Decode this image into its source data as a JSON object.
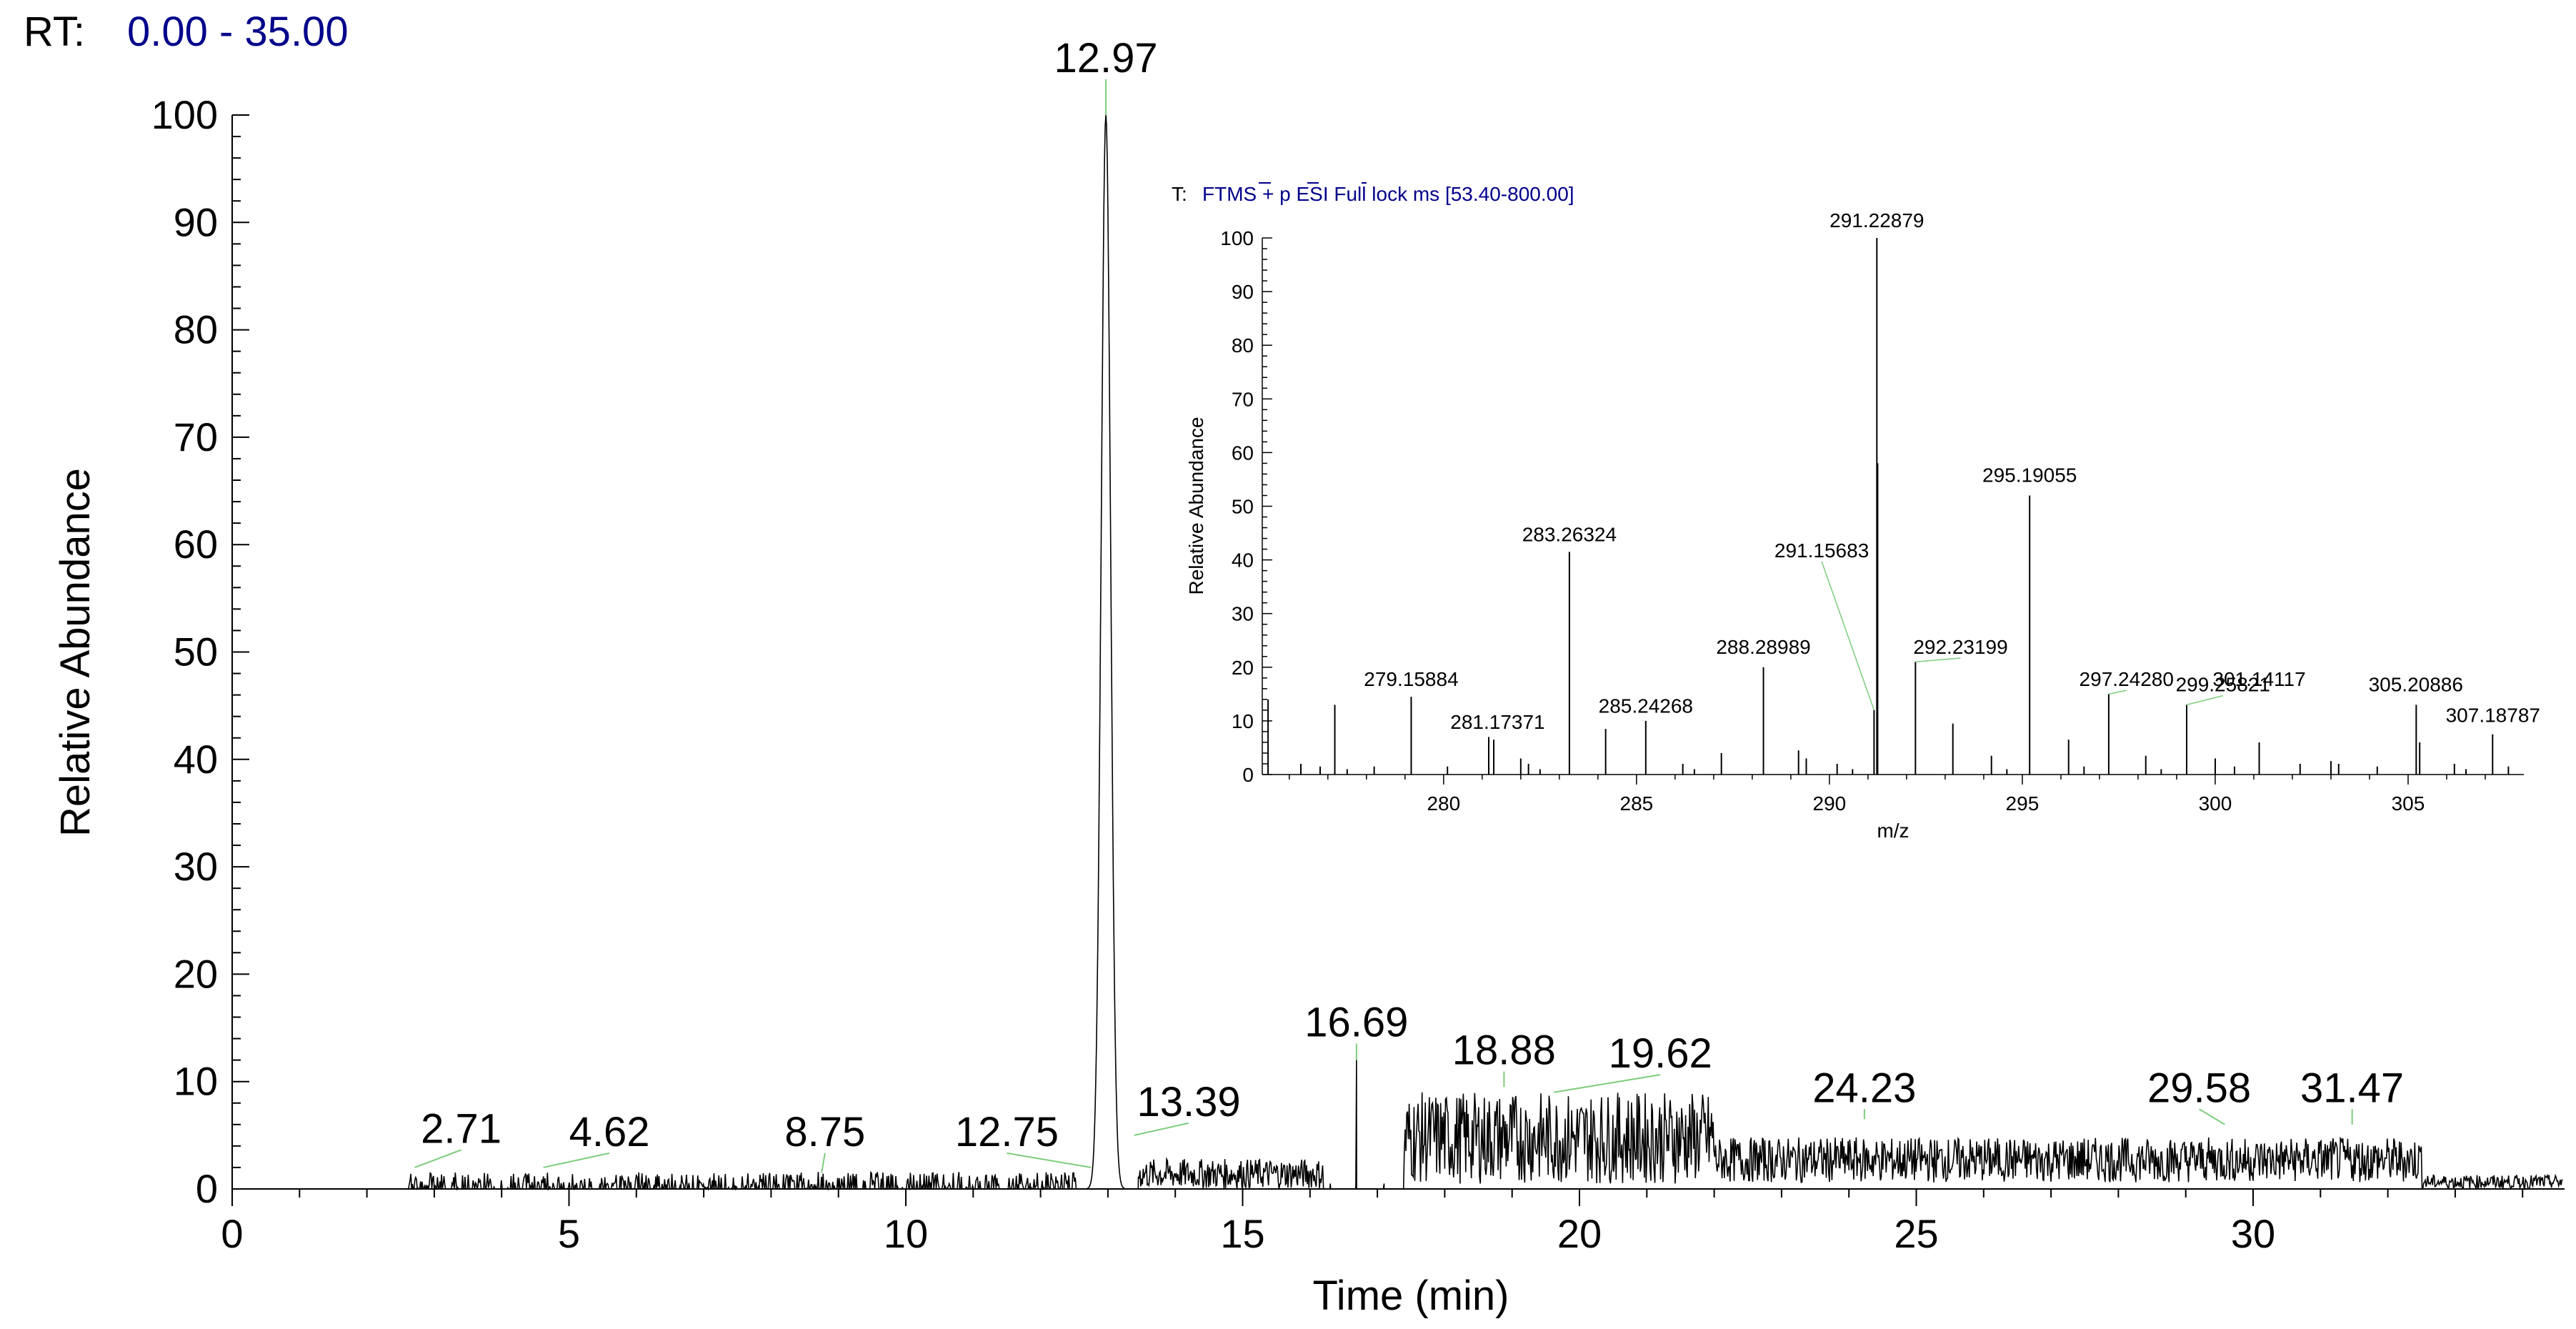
{
  "header": {
    "prefix": "RT:",
    "range": "0.00 - 35.00"
  },
  "colors": {
    "trace": "#000000",
    "label_line": "#7ccd7c",
    "header_range": "#00008b"
  },
  "chart_data": [
    {
      "type": "line",
      "name": "chromatogram",
      "xlabel": "Time (min)",
      "ylabel": "Relative Abundance",
      "xlim": [
        0,
        34.6
      ],
      "ylim": [
        0,
        100
      ],
      "xticks": [
        0,
        5,
        10,
        15,
        20,
        25,
        30
      ],
      "yticks": [
        0,
        10,
        20,
        30,
        40,
        50,
        60,
        70,
        80,
        90,
        100
      ],
      "peaks": [
        {
          "x": 2.71,
          "y": 2,
          "label": "2.71"
        },
        {
          "x": 4.62,
          "y": 2,
          "label": "4.62"
        },
        {
          "x": 8.75,
          "y": 1.5,
          "label": "8.75"
        },
        {
          "x": 12.75,
          "y": 2,
          "label": "12.75"
        },
        {
          "x": 12.97,
          "y": 100,
          "label": "12.97"
        },
        {
          "x": 13.39,
          "y": 5,
          "label": "13.39"
        },
        {
          "x": 16.69,
          "y": 12,
          "label": "16.69"
        },
        {
          "x": 18.88,
          "y": 9.5,
          "label": "18.88"
        },
        {
          "x": 19.62,
          "y": 9,
          "label": "19.62"
        },
        {
          "x": 24.23,
          "y": 6.5,
          "label": "24.23"
        },
        {
          "x": 29.58,
          "y": 6,
          "label": "29.58"
        },
        {
          "x": 31.47,
          "y": 6,
          "label": "31.47"
        }
      ]
    },
    {
      "type": "bar",
      "name": "mass-spectrum",
      "scan_prefix": "T:",
      "scan_filter": "FTMS + p ESI Full lock ms [53.40-800.00]",
      "xlabel": "m/z",
      "ylabel": "Relative Abundance",
      "xlim": [
        275.3,
        308.0
      ],
      "ylim": [
        0,
        100
      ],
      "xticks": [
        280,
        285,
        290,
        295,
        300,
        305
      ],
      "yticks": [
        0,
        10,
        20,
        30,
        40,
        50,
        60,
        70,
        80,
        90,
        100
      ],
      "peaks": [
        {
          "x": 275.45,
          "y": 14
        },
        {
          "x": 276.3,
          "y": 2
        },
        {
          "x": 276.8,
          "y": 1.5
        },
        {
          "x": 277.18,
          "y": 13
        },
        {
          "x": 277.5,
          "y": 1
        },
        {
          "x": 278.2,
          "y": 1.5
        },
        {
          "x": 279.16,
          "y": 14.5,
          "label": "279.15884"
        },
        {
          "x": 280.1,
          "y": 1.5
        },
        {
          "x": 281.17,
          "y": 7,
          "label": "281.17371"
        },
        {
          "x": 281.3,
          "y": 6.5
        },
        {
          "x": 282.0,
          "y": 3
        },
        {
          "x": 282.2,
          "y": 2
        },
        {
          "x": 282.5,
          "y": 1
        },
        {
          "x": 283.26,
          "y": 41.5,
          "label": "283.26324"
        },
        {
          "x": 284.2,
          "y": 8.5
        },
        {
          "x": 285.24,
          "y": 10,
          "label": "285.24268"
        },
        {
          "x": 286.2,
          "y": 2
        },
        {
          "x": 286.5,
          "y": 1
        },
        {
          "x": 287.2,
          "y": 4
        },
        {
          "x": 288.29,
          "y": 20,
          "label": "288.28989"
        },
        {
          "x": 289.2,
          "y": 4.5
        },
        {
          "x": 289.4,
          "y": 3
        },
        {
          "x": 290.2,
          "y": 2
        },
        {
          "x": 290.6,
          "y": 1
        },
        {
          "x": 291.15683,
          "y": 12,
          "label": "291.15683"
        },
        {
          "x": 291.23,
          "y": 100,
          "label": "291.22879"
        },
        {
          "x": 291.25,
          "y": 58
        },
        {
          "x": 292.23,
          "y": 21,
          "label": "292.23199"
        },
        {
          "x": 293.2,
          "y": 9.5
        },
        {
          "x": 294.2,
          "y": 3.5
        },
        {
          "x": 294.6,
          "y": 1
        },
        {
          "x": 295.19,
          "y": 52,
          "label": "295.19055"
        },
        {
          "x": 296.2,
          "y": 6.5
        },
        {
          "x": 296.6,
          "y": 1.5
        },
        {
          "x": 297.24,
          "y": 15,
          "label": "297.24280"
        },
        {
          "x": 298.2,
          "y": 3.5
        },
        {
          "x": 298.6,
          "y": 1
        },
        {
          "x": 299.26,
          "y": 13,
          "label": "299.25821"
        },
        {
          "x": 300.0,
          "y": 3
        },
        {
          "x": 300.5,
          "y": 1.5
        },
        {
          "x": 301.14,
          "y": 6,
          "label": "301.14117"
        },
        {
          "x": 302.2,
          "y": 2
        },
        {
          "x": 303.0,
          "y": 2.5
        },
        {
          "x": 303.2,
          "y": 2
        },
        {
          "x": 304.2,
          "y": 1.5
        },
        {
          "x": 305.21,
          "y": 13,
          "label": "305.20886"
        },
        {
          "x": 305.3,
          "y": 6
        },
        {
          "x": 306.2,
          "y": 2
        },
        {
          "x": 306.5,
          "y": 1
        },
        {
          "x": 307.19,
          "y": 7.5,
          "label": "307.18787"
        },
        {
          "x": 307.6,
          "y": 1.5
        }
      ]
    }
  ]
}
